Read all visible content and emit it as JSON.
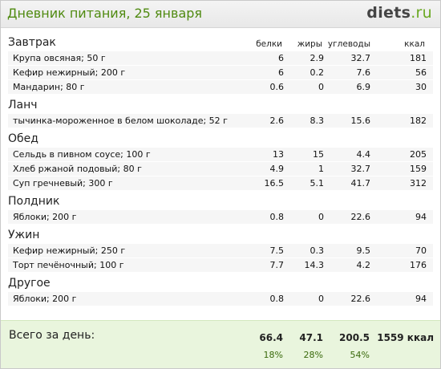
{
  "header": {
    "title": "Дневник питания, 25 января",
    "logo_main": "diets",
    "logo_suffix": ".ru"
  },
  "columns": {
    "protein": "белки",
    "fat": "жиры",
    "carbs": "углеводы",
    "kcal": "ккал"
  },
  "meals": [
    {
      "name": "Завтрак",
      "items": [
        {
          "name": "Крупа овсяная; 50 г",
          "protein": "6",
          "fat": "2.9",
          "carbs": "32.7",
          "kcal": "181"
        },
        {
          "name": "Кефир нежирный; 200 г",
          "protein": "6",
          "fat": "0.2",
          "carbs": "7.6",
          "kcal": "56"
        },
        {
          "name": "Мандарин; 80 г",
          "protein": "0.6",
          "fat": "0",
          "carbs": "6.9",
          "kcal": "30"
        }
      ]
    },
    {
      "name": "Ланч",
      "items": [
        {
          "name": "тычинка-мороженное в белом шоколаде; 52 г",
          "protein": "2.6",
          "fat": "8.3",
          "carbs": "15.6",
          "kcal": "182"
        }
      ]
    },
    {
      "name": "Обед",
      "items": [
        {
          "name": "Сельдь в пивном соусе; 100 г",
          "protein": "13",
          "fat": "15",
          "carbs": "4.4",
          "kcal": "205"
        },
        {
          "name": "Хлеб ржаной подовый; 80 г",
          "protein": "4.9",
          "fat": "1",
          "carbs": "32.7",
          "kcal": "159"
        },
        {
          "name": "Суп гречневый; 300 г",
          "protein": "16.5",
          "fat": "5.1",
          "carbs": "41.7",
          "kcal": "312"
        }
      ]
    },
    {
      "name": "Полдник",
      "items": [
        {
          "name": "Яблоки; 200 г",
          "protein": "0.8",
          "fat": "0",
          "carbs": "22.6",
          "kcal": "94"
        }
      ]
    },
    {
      "name": "Ужин",
      "items": [
        {
          "name": "Кефир нежирный; 250 г",
          "protein": "7.5",
          "fat": "0.3",
          "carbs": "9.5",
          "kcal": "70"
        },
        {
          "name": "Торт печёночный; 100 г",
          "protein": "7.7",
          "fat": "14.3",
          "carbs": "4.2",
          "kcal": "176"
        }
      ]
    },
    {
      "name": "Другое",
      "items": [
        {
          "name": "Яблоки; 200 г",
          "protein": "0.8",
          "fat": "0",
          "carbs": "22.6",
          "kcal": "94"
        }
      ]
    }
  ],
  "totals": {
    "label": "Всего за день:",
    "protein": "66.4",
    "fat": "47.1",
    "carbs": "200.5",
    "kcal": "1559 ккал",
    "protein_pct": "18%",
    "fat_pct": "28%",
    "carbs_pct": "54%"
  },
  "colors": {
    "accent_green": "#4f8a10",
    "totals_bg": "#e9f5dd"
  }
}
